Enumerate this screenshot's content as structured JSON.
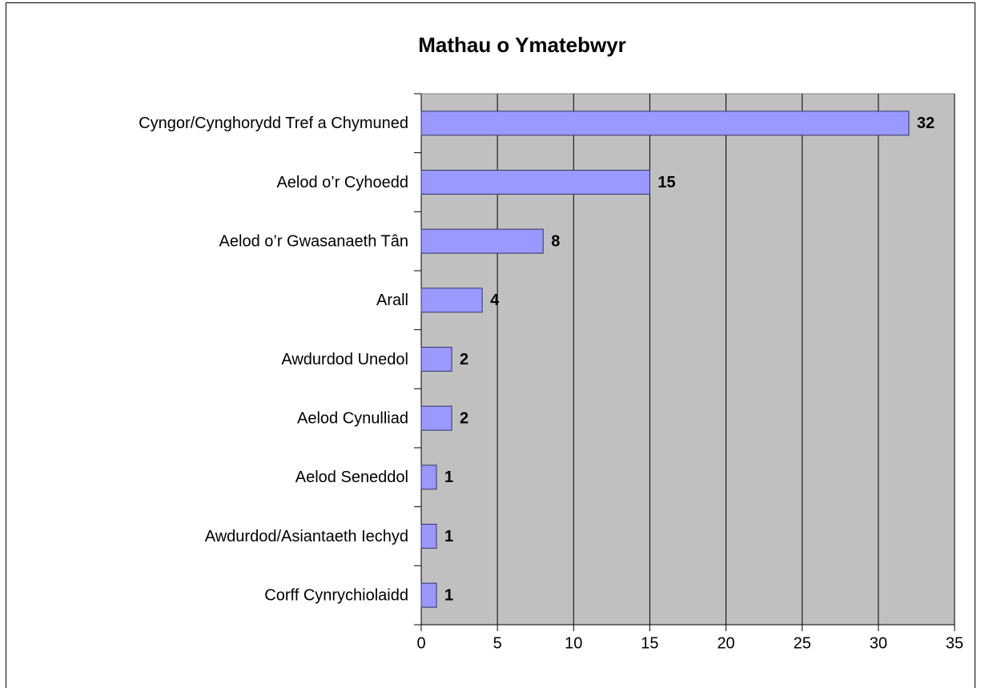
{
  "chart_data": {
    "type": "bar",
    "title": "Mathau o Ymatebwyr",
    "categories": [
      "Cyngor/Cynghorydd Tref a Chymuned",
      "Aelod o’r Cyhoedd",
      "Aelod o’r Gwasanaeth Tân",
      "Arall",
      "Awdurdod Unedol",
      "Aelod Cynulliad",
      "Aelod Seneddol",
      "Awdurdod/Asiantaeth Iechyd",
      "Corff Cynrychiolaidd"
    ],
    "values": [
      32,
      15,
      8,
      4,
      2,
      2,
      1,
      1,
      1
    ],
    "color": "#9999ff",
    "plot_background": "#c0c0c0",
    "xlim": [
      0,
      35
    ],
    "xticks": [
      0,
      5,
      10,
      15,
      20,
      25,
      30,
      35
    ],
    "grid": true
  }
}
